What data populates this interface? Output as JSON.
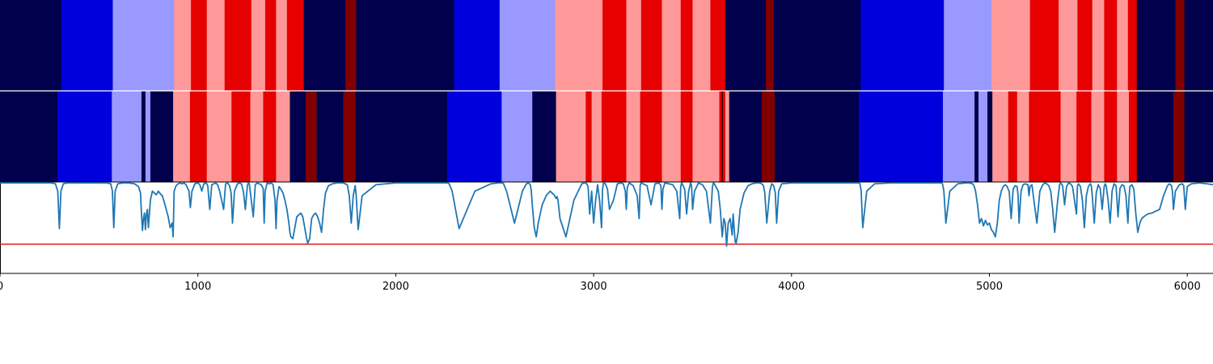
{
  "chart_data": {
    "type": "heatmap",
    "title": "",
    "xlabel": "",
    "ylabel": "",
    "xlim": [
      0,
      6130
    ],
    "x_ticks": [
      0,
      1000,
      2000,
      3000,
      4000,
      5000,
      6000
    ],
    "colors": {
      "0": "#00004c",
      "1": "#0000dd",
      "2": "#9999ff",
      "3": "#ff9999",
      "4": "#e60000",
      "5": "#800000",
      "boundary": "#000000",
      "line": "#1f77b4",
      "threshold": "#e31a1c"
    },
    "track_top": [
      [
        0,
        310,
        0
      ],
      [
        310,
        570,
        1
      ],
      [
        570,
        880,
        2
      ],
      [
        880,
        965,
        3
      ],
      [
        965,
        1045,
        4
      ],
      [
        1045,
        1135,
        3
      ],
      [
        1135,
        1270,
        4
      ],
      [
        1270,
        1340,
        3
      ],
      [
        1340,
        1395,
        4
      ],
      [
        1395,
        1450,
        3
      ],
      [
        1450,
        1535,
        4
      ],
      [
        1535,
        1745,
        0
      ],
      [
        1745,
        1800,
        5
      ],
      [
        1800,
        2295,
        0
      ],
      [
        2295,
        2525,
        1
      ],
      [
        2525,
        2805,
        2
      ],
      [
        2805,
        3045,
        3
      ],
      [
        3045,
        3165,
        4
      ],
      [
        3165,
        3240,
        3
      ],
      [
        3240,
        3345,
        4
      ],
      [
        3345,
        3440,
        3
      ],
      [
        3440,
        3500,
        4
      ],
      [
        3500,
        3590,
        3
      ],
      [
        3590,
        3665,
        4
      ],
      [
        3665,
        3870,
        0
      ],
      [
        3870,
        3910,
        5
      ],
      [
        3910,
        4350,
        0
      ],
      [
        4350,
        4770,
        1
      ],
      [
        4770,
        5010,
        2
      ],
      [
        5010,
        5205,
        3
      ],
      [
        5205,
        5350,
        4
      ],
      [
        5350,
        5445,
        3
      ],
      [
        5445,
        5520,
        4
      ],
      [
        5520,
        5580,
        3
      ],
      [
        5580,
        5645,
        4
      ],
      [
        5645,
        5700,
        3
      ],
      [
        5700,
        5745,
        4
      ],
      [
        5745,
        5940,
        0
      ],
      [
        5940,
        5985,
        5
      ],
      [
        5985,
        6130,
        0
      ]
    ],
    "track_bottom": [
      [
        0,
        290,
        0
      ],
      [
        290,
        565,
        1
      ],
      [
        565,
        715,
        2
      ],
      [
        715,
        735,
        0
      ],
      [
        735,
        760,
        2
      ],
      [
        760,
        875,
        0
      ],
      [
        875,
        960,
        3
      ],
      [
        960,
        1045,
        4
      ],
      [
        1045,
        1170,
        3
      ],
      [
        1170,
        1265,
        4
      ],
      [
        1265,
        1330,
        3
      ],
      [
        1330,
        1395,
        4
      ],
      [
        1395,
        1465,
        3
      ],
      [
        1465,
        1545,
        0
      ],
      [
        1545,
        1600,
        5
      ],
      [
        1600,
        1735,
        0
      ],
      [
        1735,
        1795,
        5
      ],
      [
        1795,
        2260,
        0
      ],
      [
        2260,
        2535,
        1
      ],
      [
        2535,
        2690,
        2
      ],
      [
        2690,
        2810,
        0
      ],
      [
        2810,
        2960,
        3
      ],
      [
        2960,
        2990,
        4
      ],
      [
        2990,
        3040,
        3
      ],
      [
        3040,
        3165,
        4
      ],
      [
        3165,
        3235,
        3
      ],
      [
        3235,
        3345,
        4
      ],
      [
        3345,
        3440,
        3
      ],
      [
        3440,
        3500,
        4
      ],
      [
        3500,
        3635,
        3
      ],
      [
        3635,
        3665,
        4
      ],
      [
        3665,
        3685,
        3
      ],
      [
        3685,
        3850,
        0
      ],
      [
        3850,
        3915,
        5
      ],
      [
        3915,
        4340,
        0
      ],
      [
        4340,
        4765,
        1
      ],
      [
        4765,
        4925,
        2
      ],
      [
        4925,
        4945,
        0
      ],
      [
        4945,
        4990,
        2
      ],
      [
        4990,
        5015,
        0
      ],
      [
        5015,
        5095,
        3
      ],
      [
        5095,
        5140,
        4
      ],
      [
        5140,
        5200,
        3
      ],
      [
        5200,
        5360,
        4
      ],
      [
        5360,
        5440,
        3
      ],
      [
        5440,
        5515,
        4
      ],
      [
        5515,
        5580,
        3
      ],
      [
        5580,
        5645,
        4
      ],
      [
        5645,
        5705,
        3
      ],
      [
        5705,
        5745,
        4
      ],
      [
        5745,
        5930,
        0
      ],
      [
        5930,
        5985,
        5
      ],
      [
        5985,
        6130,
        0
      ]
    ],
    "boundary_markers": [
      3650
    ],
    "threshold_y": 0.32,
    "ylim": [
      0,
      1
    ],
    "line_series": {
      "x": [
        0,
        20,
        40,
        60,
        80,
        100,
        120,
        140,
        160,
        180,
        200,
        220,
        240,
        260,
        280,
        292,
        300,
        308,
        320,
        340,
        360,
        380,
        400,
        420,
        440,
        460,
        480,
        500,
        520,
        540,
        560,
        568,
        575,
        582,
        595,
        620,
        650,
        680,
        700,
        710,
        715,
        720,
        725,
        730,
        735,
        740,
        745,
        750,
        755,
        760,
        770,
        780,
        790,
        800,
        810,
        820,
        830,
        840,
        850,
        860,
        870,
        875,
        880,
        890,
        900,
        910,
        920,
        930,
        940,
        955,
        962,
        970,
        985,
        1000,
        1010,
        1020,
        1030,
        1040,
        1045,
        1050,
        1060,
        1070,
        1080,
        1090,
        1100,
        1110,
        1120,
        1130,
        1140,
        1150,
        1160,
        1168,
        1175,
        1185,
        1200,
        1210,
        1220,
        1230,
        1240,
        1250,
        1255,
        1260,
        1270,
        1280,
        1290,
        1300,
        1310,
        1320,
        1330,
        1335,
        1340,
        1350,
        1360,
        1370,
        1380,
        1390,
        1395,
        1400,
        1410,
        1420,
        1430,
        1440,
        1450,
        1460,
        1465,
        1470,
        1480,
        1490,
        1500,
        1510,
        1520,
        1530,
        1540,
        1548,
        1555,
        1565,
        1575,
        1585,
        1595,
        1605,
        1615,
        1625,
        1635,
        1645,
        1660,
        1680,
        1700,
        1720,
        1735,
        1745,
        1755,
        1765,
        1775,
        1785,
        1795,
        1800,
        1810,
        1830,
        1900,
        2000,
        2100,
        2200,
        2240,
        2255,
        2262,
        2270,
        2285,
        2320,
        2400,
        2480,
        2520,
        2530,
        2538,
        2545,
        2560,
        2600,
        2640,
        2660,
        2670,
        2680,
        2685,
        2690,
        2700,
        2710,
        2720,
        2740,
        2760,
        2780,
        2800,
        2810,
        2815,
        2820,
        2830,
        2860,
        2900,
        2940,
        2950,
        2958,
        2965,
        2972,
        2980,
        2990,
        3000,
        3010,
        3020,
        3030,
        3040,
        3045,
        3050,
        3060,
        3070,
        3080,
        3100,
        3120,
        3140,
        3150,
        3160,
        3165,
        3170,
        3180,
        3200,
        3220,
        3230,
        3235,
        3240,
        3250,
        3270,
        3290,
        3310,
        3330,
        3340,
        3345,
        3350,
        3360,
        3380,
        3400,
        3420,
        3435,
        3440,
        3445,
        3450,
        3460,
        3470,
        3480,
        3490,
        3495,
        3500,
        3510,
        3530,
        3550,
        3570,
        3590,
        3600,
        3605,
        3610,
        3630,
        3640,
        3650,
        3658,
        3665,
        3672,
        3680,
        3690,
        3700,
        3705,
        3710,
        3715,
        3720,
        3730,
        3740,
        3760,
        3780,
        3800,
        3820,
        3840,
        3850,
        3858,
        3865,
        3875,
        3890,
        3900,
        3910,
        3918,
        3925,
        3935,
        3950,
        4000,
        4100,
        4200,
        4300,
        4330,
        4340,
        4346,
        4352,
        4360,
        4380,
        4420,
        4500,
        4600,
        4700,
        4740,
        4755,
        4763,
        4770,
        4780,
        4800,
        4840,
        4880,
        4900,
        4915,
        4922,
        4930,
        4940,
        4950,
        4960,
        4970,
        4980,
        4990,
        5000,
        5010,
        5020,
        5030,
        5040,
        5050,
        5060,
        5070,
        5080,
        5090,
        5095,
        5100,
        5110,
        5120,
        5130,
        5140,
        5145,
        5150,
        5160,
        5170,
        5180,
        5195,
        5200,
        5205,
        5215,
        5225,
        5240,
        5255,
        5270,
        5280,
        5290,
        5300,
        5310,
        5320,
        5330,
        5345,
        5355,
        5360,
        5370,
        5380,
        5390,
        5400,
        5410,
        5420,
        5430,
        5440,
        5445,
        5450,
        5460,
        5470,
        5480,
        5490,
        5500,
        5510,
        5515,
        5520,
        5530,
        5540,
        5550,
        5560,
        5570,
        5580,
        5585,
        5590,
        5600,
        5610,
        5620,
        5630,
        5640,
        5645,
        5650,
        5660,
        5670,
        5680,
        5690,
        5700,
        5705,
        5710,
        5720,
        5730,
        5740,
        5750,
        5760,
        5770,
        5780,
        5800,
        5820,
        5840,
        5860,
        5880,
        5900,
        5910,
        5920,
        5925,
        5930,
        5940,
        5960,
        5975,
        5982,
        5990,
        6000,
        6020,
        6060,
        6100,
        6130
      ],
      "y": [
        0.99,
        0.99,
        0.99,
        0.99,
        0.99,
        0.99,
        0.99,
        0.99,
        0.99,
        0.99,
        0.99,
        0.99,
        0.99,
        0.99,
        0.98,
        0.9,
        0.49,
        0.9,
        0.98,
        0.99,
        0.99,
        0.99,
        0.99,
        0.99,
        0.99,
        0.99,
        0.99,
        0.99,
        0.99,
        0.99,
        0.98,
        0.9,
        0.5,
        0.9,
        0.98,
        0.99,
        0.99,
        0.98,
        0.95,
        0.88,
        0.65,
        0.47,
        0.6,
        0.66,
        0.48,
        0.65,
        0.7,
        0.5,
        0.65,
        0.8,
        0.9,
        0.88,
        0.86,
        0.9,
        0.87,
        0.85,
        0.78,
        0.7,
        0.62,
        0.5,
        0.55,
        0.4,
        0.9,
        0.96,
        0.98,
        0.99,
        0.98,
        0.99,
        0.97,
        0.9,
        0.72,
        0.9,
        0.98,
        0.99,
        0.97,
        0.9,
        0.98,
        0.99,
        0.98,
        0.96,
        0.7,
        0.97,
        0.98,
        0.99,
        0.97,
        0.9,
        0.8,
        0.7,
        0.98,
        0.99,
        0.96,
        0.88,
        0.55,
        0.9,
        0.98,
        0.99,
        0.98,
        0.9,
        0.7,
        0.96,
        0.99,
        0.98,
        0.8,
        0.62,
        0.97,
        0.99,
        0.98,
        0.97,
        0.93,
        0.55,
        0.9,
        0.99,
        0.98,
        0.99,
        0.97,
        0.8,
        0.49,
        0.8,
        0.95,
        0.92,
        0.88,
        0.8,
        0.7,
        0.55,
        0.45,
        0.4,
        0.38,
        0.5,
        0.62,
        0.64,
        0.66,
        0.62,
        0.5,
        0.4,
        0.33,
        0.38,
        0.6,
        0.64,
        0.66,
        0.62,
        0.55,
        0.45,
        0.7,
        0.88,
        0.96,
        0.98,
        0.99,
        0.99,
        0.99,
        0.98,
        0.97,
        0.85,
        0.55,
        0.85,
        0.96,
        0.85,
        0.48,
        0.85,
        0.97,
        0.99,
        0.99,
        0.99,
        0.99,
        0.99,
        0.99,
        0.98,
        0.9,
        0.49,
        0.9,
        0.98,
        0.99,
        0.99,
        0.99,
        0.98,
        0.9,
        0.55,
        0.9,
        0.98,
        0.99,
        0.97,
        0.9,
        0.75,
        0.5,
        0.4,
        0.55,
        0.75,
        0.85,
        0.9,
        0.86,
        0.82,
        0.84,
        0.8,
        0.6,
        0.4,
        0.8,
        0.98,
        0.99,
        0.99,
        0.98,
        0.95,
        0.65,
        0.9,
        0.55,
        0.8,
        0.97,
        0.8,
        0.5,
        0.92,
        0.99,
        0.98,
        0.92,
        0.7,
        0.8,
        0.98,
        0.99,
        0.98,
        0.9,
        0.7,
        0.94,
        0.99,
        0.96,
        0.85,
        0.6,
        0.96,
        0.99,
        0.98,
        0.96,
        0.75,
        0.98,
        0.99,
        0.96,
        0.7,
        0.92,
        0.99,
        0.98,
        0.97,
        0.9,
        0.6,
        0.95,
        0.99,
        0.97,
        0.92,
        0.65,
        0.9,
        0.99,
        0.96,
        0.7,
        0.9,
        0.99,
        0.97,
        0.9,
        0.55,
        0.94,
        0.99,
        0.98,
        0.9,
        0.7,
        0.4,
        0.6,
        0.55,
        0.3,
        0.55,
        0.6,
        0.42,
        0.65,
        0.5,
        0.35,
        0.33,
        0.45,
        0.7,
        0.88,
        0.96,
        0.98,
        0.99,
        0.99,
        0.98,
        0.96,
        0.88,
        0.55,
        0.9,
        0.98,
        0.96,
        0.88,
        0.55,
        0.9,
        0.98,
        0.99,
        0.99,
        0.99,
        0.99,
        0.99,
        0.99,
        0.98,
        0.9,
        0.5,
        0.9,
        0.98,
        0.99,
        0.99,
        0.99,
        0.99,
        0.99,
        0.98,
        0.9,
        0.55,
        0.9,
        0.98,
        0.99,
        0.99,
        0.98,
        0.96,
        0.9,
        0.75,
        0.55,
        0.6,
        0.52,
        0.58,
        0.53,
        0.55,
        0.48,
        0.45,
        0.4,
        0.55,
        0.8,
        0.9,
        0.95,
        0.97,
        0.95,
        0.92,
        0.9,
        0.6,
        0.92,
        0.96,
        0.95,
        0.85,
        0.55,
        0.9,
        0.97,
        0.98,
        0.97,
        0.85,
        0.95,
        0.97,
        0.8,
        0.55,
        0.9,
        0.97,
        0.99,
        0.98,
        0.96,
        0.9,
        0.7,
        0.45,
        0.8,
        0.97,
        0.99,
        0.96,
        0.75,
        0.95,
        0.99,
        0.98,
        0.95,
        0.8,
        0.65,
        0.96,
        0.98,
        0.95,
        0.8,
        0.5,
        0.85,
        0.95,
        0.98,
        0.96,
        0.85,
        0.55,
        0.88,
        0.97,
        0.93,
        0.7,
        0.95,
        0.98,
        0.96,
        0.8,
        0.55,
        0.9,
        0.98,
        0.96,
        0.8,
        0.62,
        0.93,
        0.97,
        0.96,
        0.85,
        0.55,
        0.8,
        0.95,
        0.97,
        0.92,
        0.65,
        0.45,
        0.55,
        0.6,
        0.62,
        0.65,
        0.66,
        0.68,
        0.7,
        0.85,
        0.96,
        0.98,
        0.96,
        0.9,
        0.7,
        0.9,
        0.97,
        0.98,
        0.96,
        0.7,
        0.95,
        0.98,
        0.99,
        0.98,
        0.97
      ]
    }
  }
}
